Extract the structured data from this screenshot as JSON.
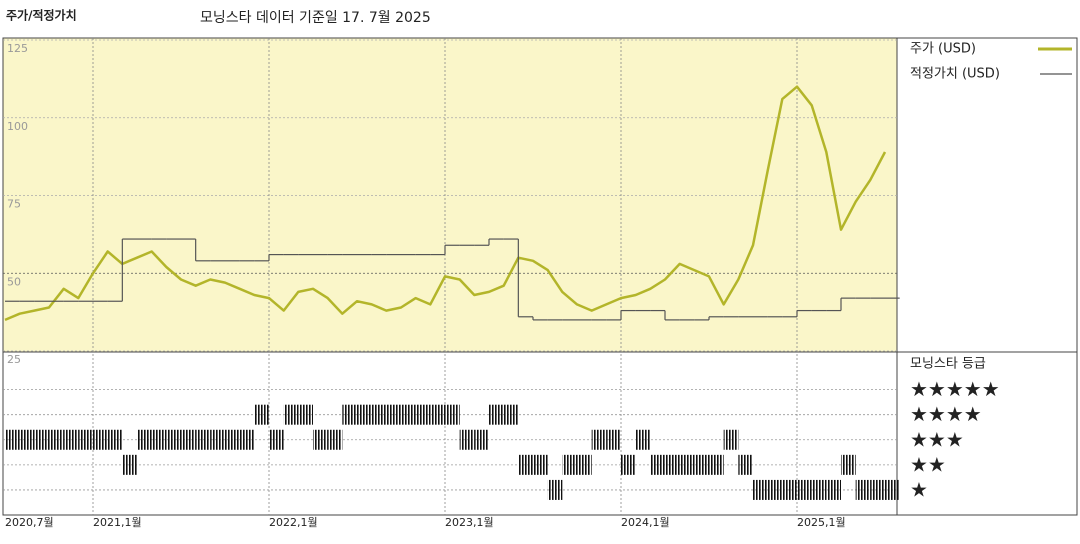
{
  "chart_data": {
    "type": "line",
    "title": "주가/적정가치",
    "subtitle": "모닝스타 데이터 기준일 17. 7월 2025",
    "x": [
      "2020-07",
      "2020-08",
      "2020-09",
      "2020-10",
      "2020-11",
      "2020-12",
      "2021-01",
      "2021-02",
      "2021-03",
      "2021-04",
      "2021-05",
      "2021-06",
      "2021-07",
      "2021-08",
      "2021-09",
      "2021-10",
      "2021-11",
      "2021-12",
      "2022-01",
      "2022-02",
      "2022-03",
      "2022-04",
      "2022-05",
      "2022-06",
      "2022-07",
      "2022-08",
      "2022-09",
      "2022-10",
      "2022-11",
      "2022-12",
      "2023-01",
      "2023-02",
      "2023-03",
      "2023-04",
      "2023-05",
      "2023-06",
      "2023-07",
      "2023-08",
      "2023-09",
      "2023-10",
      "2023-11",
      "2023-12",
      "2024-01",
      "2024-02",
      "2024-03",
      "2024-04",
      "2024-05",
      "2024-06",
      "2024-07",
      "2024-08",
      "2024-09",
      "2024-10",
      "2024-11",
      "2024-12",
      "2025-01",
      "2025-02",
      "2025-03",
      "2025-04",
      "2025-05",
      "2025-06",
      "2025-07"
    ],
    "xticks": [
      {
        "value": "2020-07",
        "label": "2020,7월"
      },
      {
        "value": "2021-01",
        "label": "2021,1월"
      },
      {
        "value": "2022-01",
        "label": "2022,1월"
      },
      {
        "value": "2023-01",
        "label": "2023,1월"
      },
      {
        "value": "2024-01",
        "label": "2024,1월"
      },
      {
        "value": "2025-01",
        "label": "2025,1월"
      }
    ],
    "ylim": [
      25,
      125
    ],
    "yticks": [
      25,
      50,
      75,
      100,
      125
    ],
    "y2lim": [
      0,
      6.5
    ],
    "y2ticks": [
      {
        "value": 5,
        "label": "★★★★★"
      },
      {
        "value": 4,
        "label": "★★★★"
      },
      {
        "value": 3,
        "label": "★★★"
      },
      {
        "value": 2,
        "label": "★★"
      },
      {
        "value": 1,
        "label": "★"
      }
    ],
    "grid": true,
    "series": [
      {
        "name": "주가 (USD)",
        "color": "#b3b52a",
        "values": [
          35,
          37,
          38,
          39,
          45,
          42,
          50,
          57,
          53,
          55,
          57,
          52,
          48,
          46,
          48,
          47,
          45,
          43,
          42,
          38,
          44,
          45,
          42,
          37,
          41,
          40,
          38,
          39,
          42,
          40,
          49,
          48,
          43,
          44,
          46,
          55,
          54,
          51,
          44,
          40,
          38,
          40,
          42,
          43,
          45,
          48,
          53,
          51,
          49,
          40,
          48,
          59,
          83,
          106,
          110,
          104,
          89,
          64,
          73,
          80,
          89
        ]
      },
      {
        "name": "적정가치 (USD)",
        "color": "#555555",
        "step": true,
        "values": [
          41,
          41,
          41,
          41,
          41,
          41,
          41,
          41,
          61,
          61,
          61,
          61,
          61,
          54,
          54,
          54,
          54,
          54,
          56,
          56,
          56,
          56,
          56,
          56,
          56,
          56,
          56,
          56,
          56,
          56,
          59,
          59,
          59,
          61,
          61,
          36,
          35,
          35,
          35,
          35,
          35,
          35,
          38,
          38,
          38,
          35,
          35,
          35,
          36,
          36,
          36,
          36,
          36,
          36,
          38,
          38,
          38,
          42,
          42,
          42,
          42
        ]
      },
      {
        "name": "모닝스타 등급",
        "color": "#111111",
        "axis": "y2",
        "values": [
          3,
          3,
          3,
          3,
          3,
          3,
          3,
          3,
          2,
          3,
          3,
          3,
          3,
          3,
          3,
          3,
          3,
          4,
          3,
          4,
          4,
          3,
          3,
          4,
          4,
          4,
          4,
          4,
          4,
          4,
          4,
          3,
          3,
          4,
          4,
          2,
          2,
          1,
          2,
          2,
          3,
          3,
          2,
          3,
          2,
          2,
          2,
          2,
          2,
          3,
          2,
          1,
          1,
          1,
          1,
          1,
          1,
          2,
          1,
          1,
          1
        ]
      }
    ]
  }
}
